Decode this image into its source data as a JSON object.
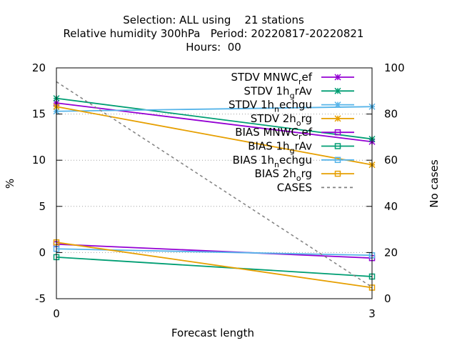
{
  "chart_data": {
    "type": "line",
    "title_lines": [
      "Selection: ALL using    21 stations",
      "Relative humidity 300hPa   Period: 20220817-20220821",
      "Hours:  00"
    ],
    "xlabel": "Forecast length",
    "ylabel": "%",
    "y2label": "No cases",
    "xlim": [
      0,
      3
    ],
    "ylim": [
      -5,
      20
    ],
    "y2lim": [
      0,
      100
    ],
    "x_ticks": [
      0,
      3
    ],
    "y_ticks": [
      -5,
      0,
      5,
      10,
      15,
      20
    ],
    "y2_ticks": [
      0,
      20,
      40,
      60,
      80,
      100
    ],
    "grid": true,
    "legend_position": "top-right",
    "x": [
      0,
      3
    ],
    "series": [
      {
        "name": "STDV MNWC_ref",
        "label_main": "STDV MNWC",
        "label_sub": "r",
        "label_tail": "ef",
        "values": [
          16.2,
          12.0
        ],
        "color": "#9400d3",
        "marker": "star",
        "axis": "y",
        "dash": false
      },
      {
        "name": "STDV 1h_grAv",
        "label_main": "STDV 1h",
        "label_sub": "g",
        "label_tail": "rAv",
        "values": [
          16.7,
          12.3
        ],
        "color": "#009e73",
        "marker": "star",
        "axis": "y",
        "dash": false
      },
      {
        "name": "STDV 1h_nechgu",
        "label_main": "STDV 1h",
        "label_sub": "n",
        "label_tail": "echgu",
        "values": [
          15.3,
          15.8
        ],
        "color": "#56b4e9",
        "marker": "star",
        "axis": "y",
        "dash": false
      },
      {
        "name": "STDV 2h_org",
        "label_main": "STDV 2h",
        "label_sub": "o",
        "label_tail": "rg",
        "values": [
          15.8,
          9.5
        ],
        "color": "#e69f00",
        "marker": "star",
        "axis": "y",
        "dash": false
      },
      {
        "name": "BIAS MNWC_ref",
        "label_main": "BIAS MNWC",
        "label_sub": "r",
        "label_tail": "ef",
        "values": [
          0.9,
          -0.6
        ],
        "color": "#9400d3",
        "marker": "square",
        "axis": "y",
        "dash": false
      },
      {
        "name": "BIAS 1h_grAv",
        "label_main": "BIAS 1h",
        "label_sub": "g",
        "label_tail": "rAv",
        "values": [
          -0.5,
          -2.6
        ],
        "color": "#009e73",
        "marker": "square",
        "axis": "y",
        "dash": false
      },
      {
        "name": "BIAS 1h_nechgu",
        "label_main": "BIAS 1h",
        "label_sub": "n",
        "label_tail": "echgu",
        "values": [
          0.4,
          -0.3
        ],
        "color": "#56b4e9",
        "marker": "square",
        "axis": "y",
        "dash": false
      },
      {
        "name": "BIAS 2h_org",
        "label_main": "BIAS 2h",
        "label_sub": "o",
        "label_tail": "rg",
        "values": [
          1.1,
          -3.8
        ],
        "color": "#e69f00",
        "marker": "square",
        "axis": "y",
        "dash": false
      },
      {
        "name": "CASES",
        "label_main": "CASES",
        "label_sub": "",
        "label_tail": "",
        "values": [
          94,
          5
        ],
        "color": "#808080",
        "marker": "none",
        "axis": "y2",
        "dash": true
      }
    ]
  }
}
